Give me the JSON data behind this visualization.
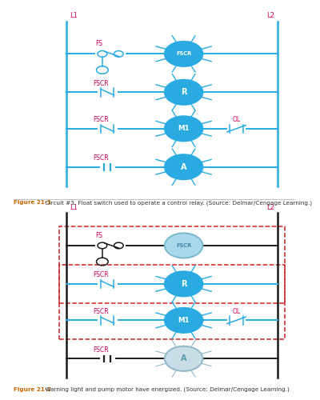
{
  "bg_color": "#cce9f5",
  "page_bg": "#ffffff",
  "line_color_blue": "#29abe2",
  "line_color_dark": "#1a1a1a",
  "line_color_red_dashed": "#cc2222",
  "text_color_label": "#cc0055",
  "text_color_fig_bold": "#cc6600",
  "text_color_fig_normal": "#333333",
  "fig1_caption_bold": "Figure 21-1",
  "fig1_caption_rest": "  Circuit #3. Float switch used to operate a control relay. (Source: Delmar/Cengage Learning.)",
  "fig2_caption_bold": "Figure 21-2",
  "fig2_caption_rest": "  Warning light and pump motor have energized. (Source: Delmar/Cengage Learning.)"
}
